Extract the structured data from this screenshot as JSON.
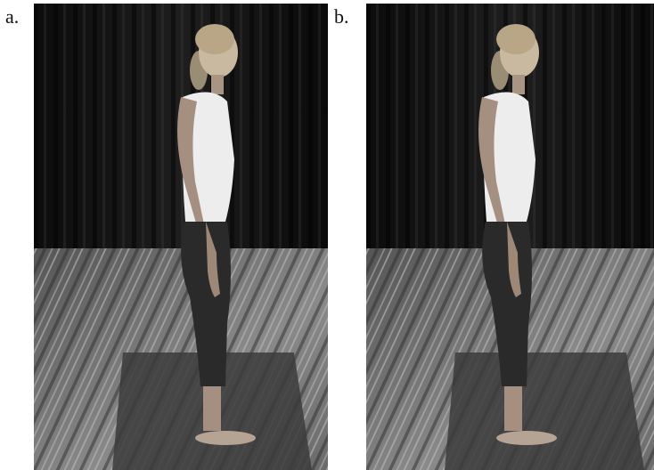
{
  "panels": [
    {
      "label": "a."
    },
    {
      "label": "b."
    }
  ]
}
